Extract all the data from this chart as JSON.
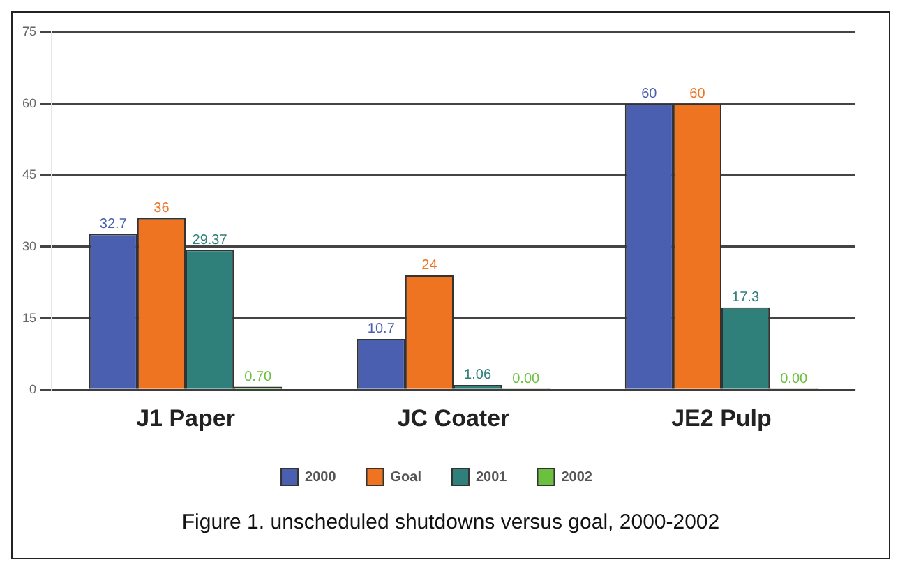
{
  "chart_data": {
    "type": "bar",
    "categories": [
      "J1 Paper",
      "JC Coater",
      "JE2 Pulp"
    ],
    "series": [
      {
        "name": "2000",
        "color": "#4a5fb0",
        "values": [
          32.7,
          10.7,
          60
        ],
        "value_labels": [
          "32.7",
          "10.7",
          "60"
        ]
      },
      {
        "name": "Goal",
        "color": "#ef7422",
        "values": [
          36,
          24,
          60
        ],
        "value_labels": [
          "36",
          "24",
          "60"
        ]
      },
      {
        "name": "2001",
        "color": "#2f7f7a",
        "values": [
          29.37,
          1.06,
          17.3
        ],
        "value_labels": [
          "29.37",
          "1.06",
          "17.3"
        ]
      },
      {
        "name": "2002",
        "color": "#6cc040",
        "values": [
          0.7,
          0,
          0
        ],
        "value_labels": [
          "0.70",
          "0.00",
          "0.00"
        ]
      }
    ],
    "ylim": [
      0,
      75
    ],
    "yticks": [
      0,
      15,
      30,
      45,
      60,
      75
    ],
    "grid": "y",
    "legend": "bottom",
    "annotations": [
      "Figure 1. unscheduled shutdowns versus goal, 2000-2002"
    ]
  }
}
